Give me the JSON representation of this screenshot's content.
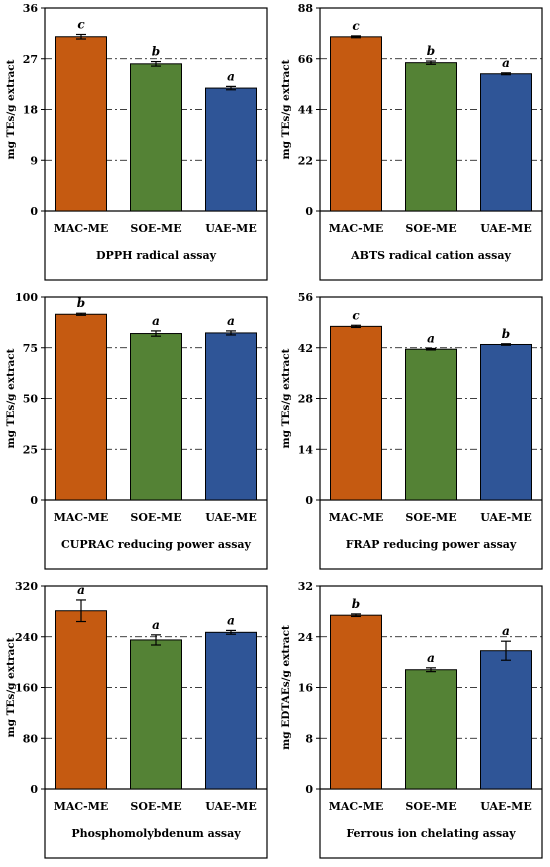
{
  "chart_data": [
    {
      "type": "bar",
      "title": "DPPH radical assay",
      "ylabel": "mg TEs/g extract",
      "categories": [
        "MAC-ME",
        "SOE-ME",
        "UAE-ME"
      ],
      "values": [
        30.9,
        26.1,
        21.8
      ],
      "errors": [
        0.4,
        0.4,
        0.3
      ],
      "letters": [
        "c",
        "b",
        "a"
      ],
      "yticks": [
        "0",
        "9",
        "18",
        "27",
        "36"
      ],
      "ylim": [
        0,
        36
      ],
      "grid": true
    },
    {
      "type": "bar",
      "title": "ABTS radical cation assay",
      "ylabel": "mg TEs/g extract",
      "categories": [
        "MAC-ME",
        "SOE-ME",
        "UAE-ME"
      ],
      "values": [
        75.5,
        64.3,
        59.5
      ],
      "errors": [
        0.4,
        0.7,
        0.4
      ],
      "letters": [
        "c",
        "b",
        "a"
      ],
      "yticks": [
        "0",
        "22",
        "44",
        "66",
        "88"
      ],
      "ylim": [
        0,
        88
      ],
      "grid": true
    },
    {
      "type": "bar",
      "title": "CUPRAC reducing power assay",
      "ylabel": "mg TEs/g extract",
      "categories": [
        "MAC-ME",
        "SOE-ME",
        "UAE-ME"
      ],
      "values": [
        91.5,
        82.0,
        82.3
      ],
      "errors": [
        0.5,
        1.3,
        1.0
      ],
      "letters": [
        "b",
        "a",
        "a"
      ],
      "yticks": [
        "0",
        "25",
        "50",
        "75",
        "100"
      ],
      "ylim": [
        0,
        100
      ],
      "grid": true
    },
    {
      "type": "bar",
      "title": "FRAP reducing power assay",
      "ylabel": "mg TEs/g extract",
      "categories": [
        "MAC-ME",
        "SOE-ME",
        "UAE-ME"
      ],
      "values": [
        47.9,
        41.6,
        42.9
      ],
      "errors": [
        0.3,
        0.2,
        0.2
      ],
      "letters": [
        "c",
        "a",
        "b"
      ],
      "yticks": [
        "0",
        "14",
        "28",
        "42",
        "56"
      ],
      "ylim": [
        0,
        56
      ],
      "grid": true
    },
    {
      "type": "bar",
      "title": "Phosphomolybdenum assay",
      "ylabel": "mg TEs/g extract",
      "categories": [
        "MAC-ME",
        "SOE-ME",
        "UAE-ME"
      ],
      "values": [
        281,
        235,
        247
      ],
      "errors": [
        17,
        8,
        3
      ],
      "letters": [
        "a",
        "a",
        "a"
      ],
      "yticks": [
        "0",
        "80",
        "160",
        "240",
        "320"
      ],
      "ylim": [
        0,
        320
      ],
      "grid": true
    },
    {
      "type": "bar",
      "title": "Ferrous ion chelating assay",
      "ylabel": "mg EDTAEs/g extract",
      "categories": [
        "MAC-ME",
        "SOE-ME",
        "UAE-ME"
      ],
      "values": [
        27.4,
        18.8,
        21.8
      ],
      "errors": [
        0.2,
        0.3,
        1.5
      ],
      "letters": [
        "b",
        "a",
        "a"
      ],
      "yticks": [
        "0",
        "8",
        "16",
        "24",
        "32"
      ],
      "ylim": [
        0,
        32
      ],
      "grid": true
    }
  ],
  "colors": {
    "MAC-ME": "#c55a11",
    "SOE-ME": "#548235",
    "UAE-ME": "#2f5597"
  }
}
